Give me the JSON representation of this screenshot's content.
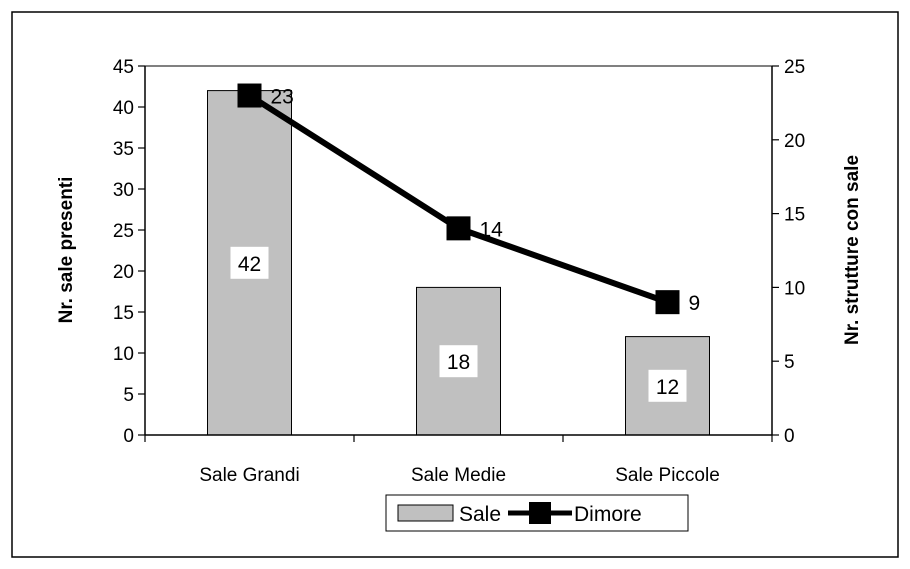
{
  "chart_data": {
    "type": "bar+line",
    "title": "",
    "categories": [
      "Sale Grandi",
      "Sale Medie",
      "Sale Piccole"
    ],
    "series": [
      {
        "name": "Sale",
        "type": "bar",
        "axis": "left",
        "values": [
          42,
          18,
          12
        ],
        "labels": [
          "42",
          "18",
          "12"
        ]
      },
      {
        "name": "Dimore",
        "type": "line",
        "axis": "right",
        "values": [
          23,
          14,
          9
        ],
        "labels": [
          "23",
          "14",
          "9"
        ]
      }
    ],
    "y_left": {
      "label": "Nr. sale presenti",
      "min": 0,
      "max": 45,
      "step": 5
    },
    "y_right": {
      "label": "Nr. strutture con sale",
      "min": 0,
      "max": 25,
      "step": 5
    },
    "legend_position": "bottom",
    "grid": false,
    "colors": {
      "bar": "#c0c0c0",
      "line": "#000000",
      "top_border": "#808080"
    }
  }
}
